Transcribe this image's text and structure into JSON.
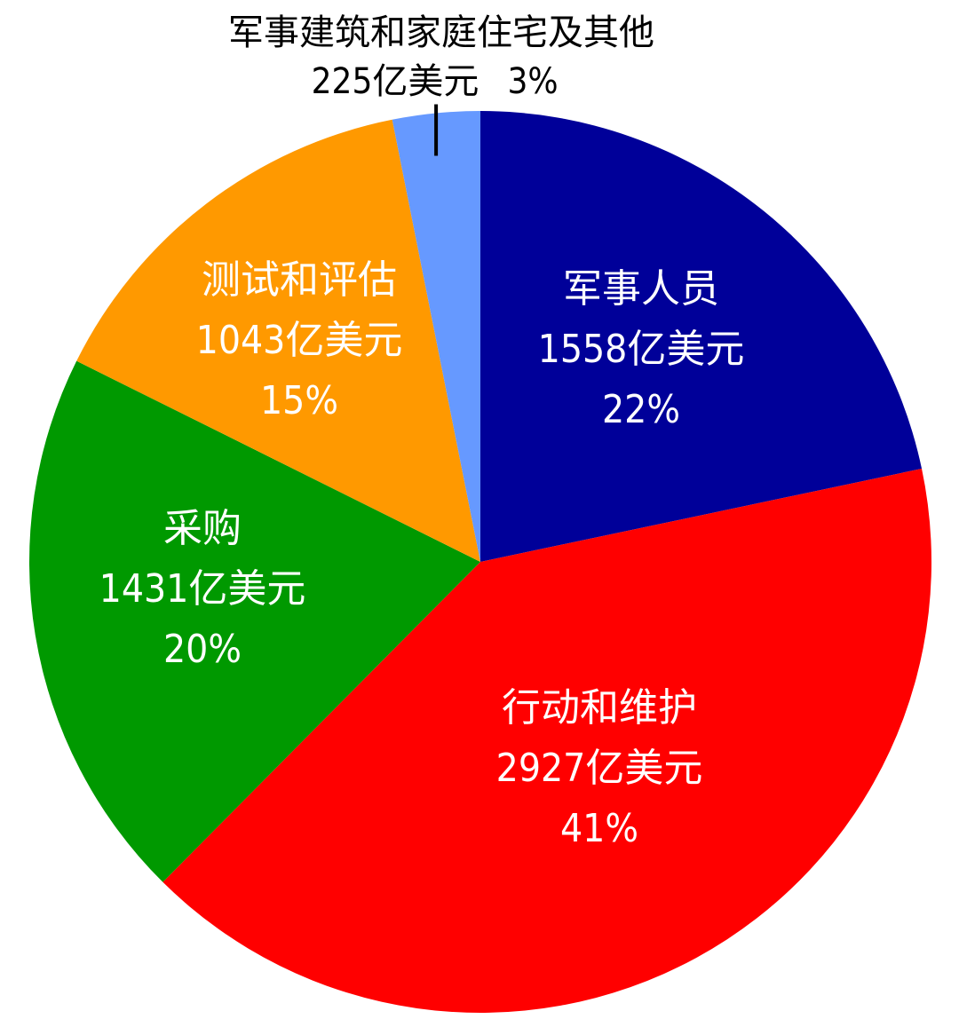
{
  "chart_data": {
    "type": "pie",
    "unit": "亿美元",
    "start_angle_deg": 0,
    "direction": "clockwise",
    "slices": [
      {
        "name": "军事人员",
        "value": 1558,
        "value_label": "1558亿美元",
        "percent_label": "22%",
        "color": "#000099"
      },
      {
        "name": "行动和维护",
        "value": 2927,
        "value_label": "2927亿美元",
        "percent_label": "41%",
        "color": "#ff0000"
      },
      {
        "name": "采购",
        "value": 1431,
        "value_label": "1431亿美元",
        "percent_label": "20%",
        "color": "#009900"
      },
      {
        "name": "测试和评估",
        "value": 1043,
        "value_label": "1043亿美元",
        "percent_label": "15%",
        "color": "#ff9900"
      },
      {
        "name": "军事建筑和家庭住宅及其他",
        "value": 225,
        "value_label": "225亿美元",
        "percent_label": "3%",
        "color": "#6699ff"
      }
    ]
  }
}
